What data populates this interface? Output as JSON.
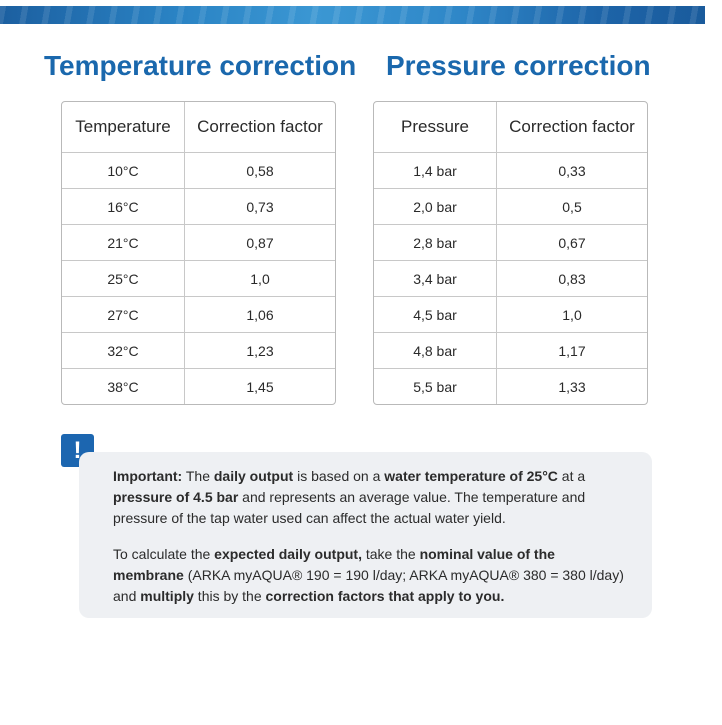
{
  "temperature_table": {
    "title": "Temperature correction",
    "headers": [
      "Temperature",
      "Correction factor"
    ],
    "rows": [
      [
        "10°C",
        "0,58"
      ],
      [
        "16°C",
        "0,73"
      ],
      [
        "21°C",
        "0,87"
      ],
      [
        "25°C",
        "1,0"
      ],
      [
        "27°C",
        "1,06"
      ],
      [
        "32°C",
        "1,23"
      ],
      [
        "38°C",
        "1,45"
      ]
    ]
  },
  "pressure_table": {
    "title": "Pressure correction",
    "headers": [
      "Pressure",
      "Correction factor"
    ],
    "rows": [
      [
        "1,4 bar",
        "0,33"
      ],
      [
        "2,0 bar",
        "0,5"
      ],
      [
        "2,8 bar",
        "0,67"
      ],
      [
        "3,4 bar",
        "0,83"
      ],
      [
        "4,5 bar",
        "1,0"
      ],
      [
        "4,8 bar",
        "1,17"
      ],
      [
        "5,5 bar",
        "1,33"
      ]
    ]
  },
  "note": {
    "icon": "exclamation-icon",
    "icon_glyph": "!",
    "paragraph1": [
      {
        "text": "Important:",
        "bold": true
      },
      {
        "text": " The ",
        "bold": false
      },
      {
        "text": "daily output",
        "bold": true
      },
      {
        "text": " is based on a ",
        "bold": false
      },
      {
        "text": "water temperature of 25°C",
        "bold": true
      },
      {
        "text": " at a ",
        "bold": false
      },
      {
        "text": "pressure of 4.5 bar",
        "bold": true
      },
      {
        "text": " and represents an average value. The temperature and pressure of the tap water used can affect the actual water yield.",
        "bold": false
      }
    ],
    "paragraph2": [
      {
        "text": "To calculate the ",
        "bold": false
      },
      {
        "text": "expected daily output,",
        "bold": true
      },
      {
        "text": " take the ",
        "bold": false
      },
      {
        "text": "nominal value of the membrane",
        "bold": true
      },
      {
        "text": " (ARKA myAQUA® 190 = 190 l/day; ARKA myAQUA® 380 = 380 l/day) and ",
        "bold": false
      },
      {
        "text": "multiply",
        "bold": true
      },
      {
        "text": " this by the ",
        "bold": false
      },
      {
        "text": "correction factors that apply to you.",
        "bold": true
      }
    ]
  }
}
